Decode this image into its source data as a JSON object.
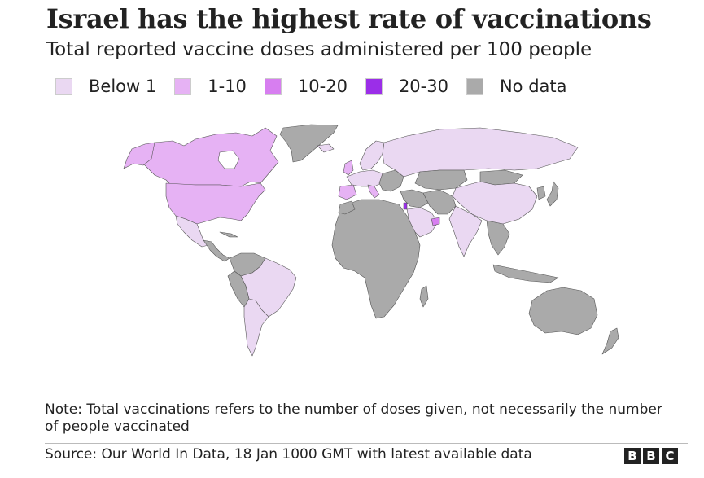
{
  "title": "Israel has the highest rate of vaccinations",
  "subtitle": "Total reported vaccine doses administered per 100 people",
  "legend": [
    {
      "label": "Below 1",
      "color": "#ead8f2"
    },
    {
      "label": "1-10",
      "color": "#e6b2f4"
    },
    {
      "label": "10-20",
      "color": "#d77ef0"
    },
    {
      "label": "20-30",
      "color": "#9b2ee8"
    },
    {
      "label": "No data",
      "color": "#aaaaaa"
    }
  ],
  "map": {
    "ocean_color": "#ffffff",
    "border_color": "#555555",
    "regions": [
      {
        "name": "Greenland",
        "category": "No data"
      },
      {
        "name": "Canada",
        "category": "1-10"
      },
      {
        "name": "United States",
        "category": "1-10"
      },
      {
        "name": "Mexico",
        "category": "Below 1"
      },
      {
        "name": "Central America",
        "category": "No data"
      },
      {
        "name": "Colombia",
        "category": "No data"
      },
      {
        "name": "Venezuela",
        "category": "No data"
      },
      {
        "name": "Peru",
        "category": "No data"
      },
      {
        "name": "Brazil",
        "category": "Below 1"
      },
      {
        "name": "Argentina",
        "category": "Below 1"
      },
      {
        "name": "Chile",
        "category": "Below 1"
      },
      {
        "name": "Iceland",
        "category": "Below 1"
      },
      {
        "name": "United Kingdom",
        "category": "1-10"
      },
      {
        "name": "Western Europe",
        "category": "Below 1"
      },
      {
        "name": "Spain",
        "category": "1-10"
      },
      {
        "name": "Italy",
        "category": "1-10"
      },
      {
        "name": "Scandinavia",
        "category": "Below 1"
      },
      {
        "name": "Eastern Europe",
        "category": "No data"
      },
      {
        "name": "Russia",
        "category": "Below 1"
      },
      {
        "name": "Kazakhstan",
        "category": "No data"
      },
      {
        "name": "Mongolia",
        "category": "No data"
      },
      {
        "name": "China",
        "category": "Below 1"
      },
      {
        "name": "Japan",
        "category": "No data"
      },
      {
        "name": "Korea",
        "category": "No data"
      },
      {
        "name": "Africa",
        "category": "No data"
      },
      {
        "name": "Morocco",
        "category": "No data"
      },
      {
        "name": "Middle East",
        "category": "No data"
      },
      {
        "name": "Israel",
        "category": "20-30"
      },
      {
        "name": "Saudi Arabia",
        "category": "Below 1"
      },
      {
        "name": "United Arab Emirates",
        "category": "10-20"
      },
      {
        "name": "Iran",
        "category": "No data"
      },
      {
        "name": "India",
        "category": "Below 1"
      },
      {
        "name": "Southeast Asia",
        "category": "No data"
      },
      {
        "name": "Indonesia",
        "category": "No data"
      },
      {
        "name": "Australia",
        "category": "No data"
      },
      {
        "name": "New Zealand",
        "category": "No data"
      }
    ]
  },
  "note": "Note: Total vaccinations refers to the number of doses given, not necessarily the number of people vaccinated",
  "source": "Source: Our World In Data, 18 Jan 1000 GMT with latest available data",
  "logo": {
    "letters": [
      "B",
      "B",
      "C"
    ]
  }
}
